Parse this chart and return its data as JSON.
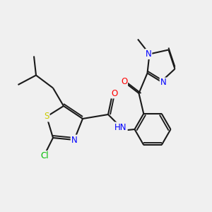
{
  "bg_color": "#f0f0f0",
  "bond_color": "#1a1a1a",
  "atom_colors": {
    "N": "#0000ff",
    "O": "#ff0000",
    "S": "#cccc00",
    "Cl": "#00bb00",
    "H": "#606060",
    "C": "#1a1a1a"
  },
  "bond_width": 1.5,
  "font_size_atom": 8.5
}
